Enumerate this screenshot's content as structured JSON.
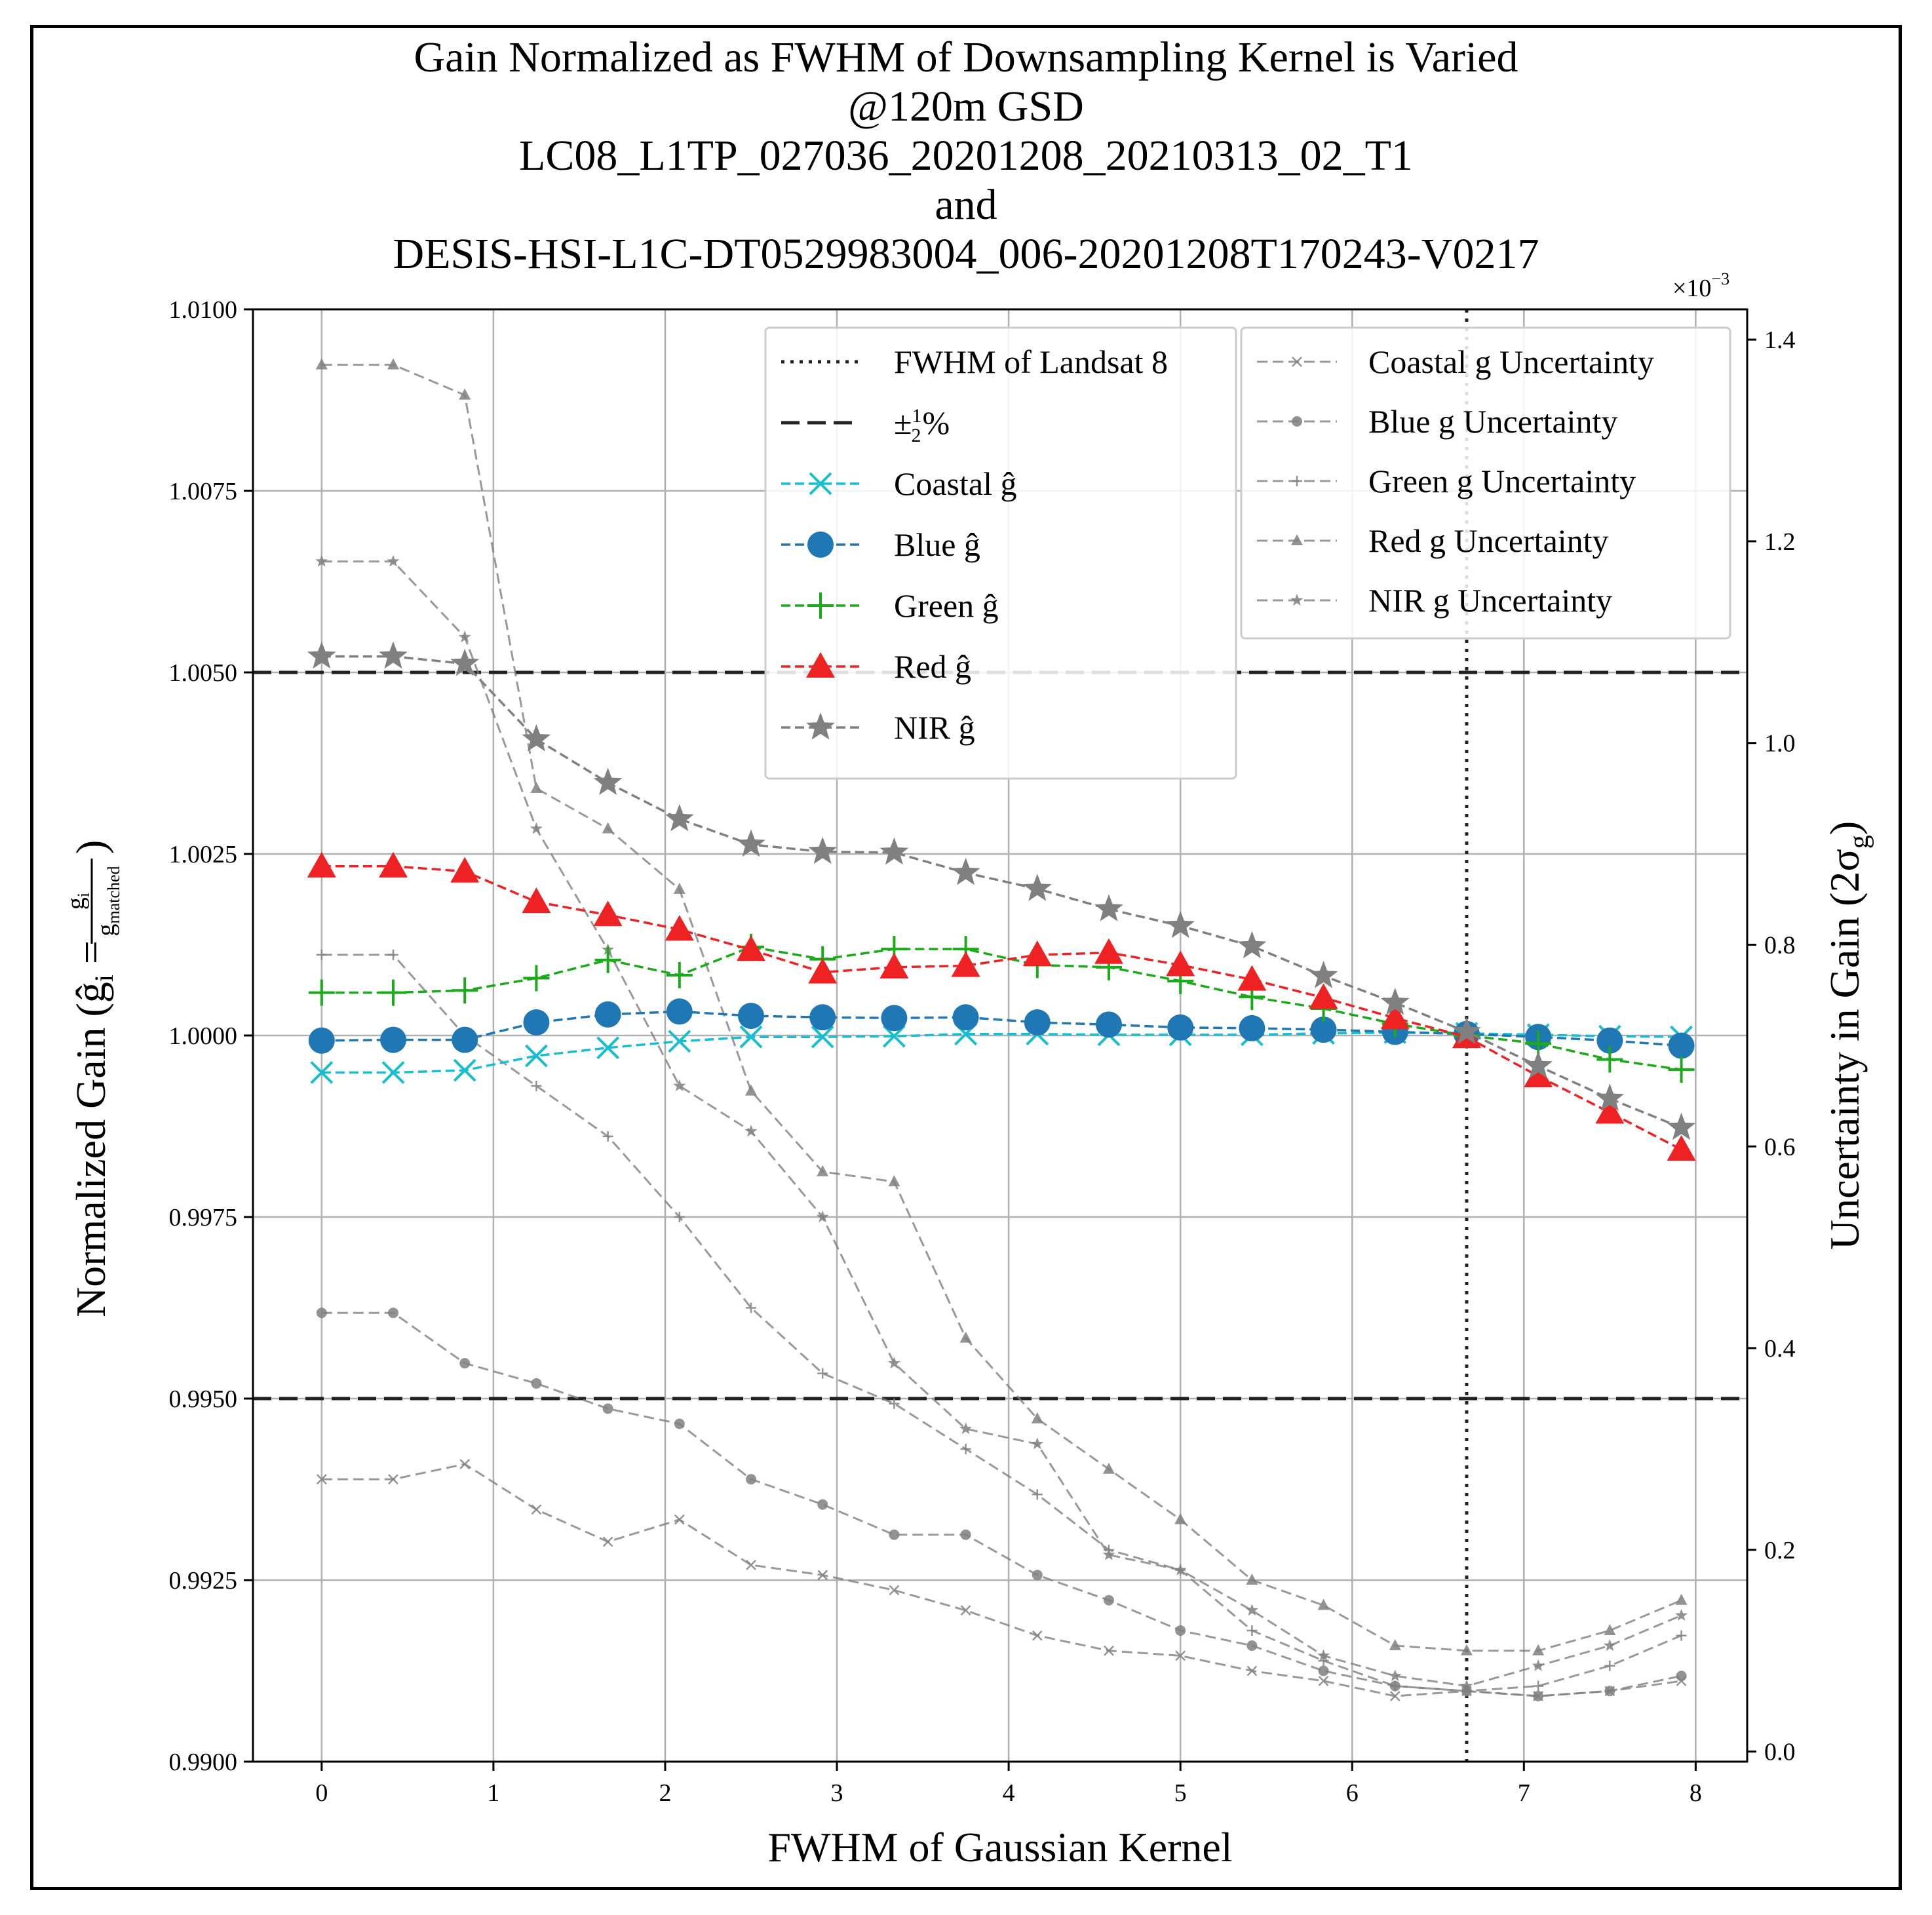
{
  "chart_data": {
    "type": "line",
    "title_lines": [
      "Gain Normalized as FWHM of Downsampling Kernel is Varied",
      "@120m GSD",
      "LC08_L1TP_027036_20201208_20210313_02_T1",
      "and",
      "DESIS-HSI-L1C-DT0529983004_006-20201208T170243-V0217"
    ],
    "xlabel": "FWHM of Gaussian Kernel",
    "ylabel_left": "Normalized Gain (ĝ_i = g_i / g_matched)",
    "ylabel_left_parts": {
      "prefix": "Normalized Gain (",
      "ghat": "ĝ",
      "sub_i": "i",
      "eq": " = ",
      "num": "g",
      "num_sub": "i",
      "den": "g",
      "den_sub": "matched",
      "suffix": " )"
    },
    "ylabel_right": "Uncertainty in Gain (2σg)",
    "ylabel_right_parts": {
      "prefix": "Uncertainty in Gain (2σ",
      "sub": "g",
      "suffix": ")"
    },
    "right_multiplier": "×10",
    "right_multiplier_exp": "−3",
    "xlim": [
      -0.4,
      8.3
    ],
    "ylim_left": [
      0.99,
      1.01
    ],
    "ylim_right": [
      -0.01,
      1.43
    ],
    "x_ticks": [
      "0",
      "1",
      "2",
      "3",
      "4",
      "5",
      "6",
      "7",
      "8"
    ],
    "x_tick_values": [
      0,
      1,
      2,
      3,
      4,
      5,
      6,
      7,
      8
    ],
    "y_left_ticks": [
      "0.9900",
      "0.9925",
      "0.9950",
      "0.9975",
      "1.0000",
      "1.0025",
      "1.0050",
      "1.0075",
      "1.0100"
    ],
    "y_left_tick_values": [
      0.99,
      0.9925,
      0.995,
      0.9975,
      1.0,
      1.0025,
      1.005,
      1.0075,
      1.01
    ],
    "y_right_ticks": [
      "0.0",
      "0.2",
      "0.4",
      "0.6",
      "0.8",
      "1.0",
      "1.2",
      "1.4"
    ],
    "y_right_tick_values": [
      0.0,
      0.2,
      0.4,
      0.6,
      0.8,
      1.0,
      1.2,
      1.4
    ],
    "grid": true,
    "x": [
      0.0,
      0.4167,
      0.8333,
      1.25,
      1.6667,
      2.0833,
      2.5,
      2.9167,
      3.3333,
      3.75,
      4.1667,
      4.5833,
      5.0,
      5.4167,
      5.8333,
      6.25,
      6.6667,
      7.0833,
      7.5,
      7.9167
    ],
    "reference_lines": {
      "fwhm_landsat8_x": 6.6667,
      "half_percent_upper": 1.005,
      "half_percent_lower": 0.995
    },
    "series": [
      {
        "name": "Coastal ĝ",
        "axis": "left",
        "color": "#17becf",
        "marker": "x",
        "values": [
          0.99949,
          0.99949,
          0.99952,
          0.99972,
          0.99983,
          0.99992,
          0.99998,
          0.99998,
          0.99999,
          1.00002,
          1.00002,
          1.00001,
          1.00001,
          1.00001,
          1.00003,
          1.00004,
          1.00003,
          1.00001,
          0.99999,
          0.99998
        ]
      },
      {
        "name": "Blue ĝ",
        "axis": "left",
        "color": "#1f77b4",
        "marker": "circle",
        "values": [
          0.99993,
          0.99994,
          0.99994,
          1.00018,
          1.00029,
          1.00033,
          1.00027,
          1.00025,
          1.00024,
          1.00025,
          1.00018,
          1.00015,
          1.00011,
          1.0001,
          1.00008,
          1.00005,
          1.00002,
          0.99998,
          0.99993,
          0.99986
        ]
      },
      {
        "name": "Green ĝ",
        "axis": "left",
        "color": "#1aaa1a",
        "marker": "plus",
        "values": [
          1.00059,
          1.00059,
          1.00062,
          1.00079,
          1.00104,
          1.00083,
          1.00122,
          1.00105,
          1.00119,
          1.00119,
          1.00097,
          1.00094,
          1.00075,
          1.00053,
          1.00037,
          1.00016,
          1.0,
          0.99989,
          0.99967,
          0.99953
        ]
      },
      {
        "name": "Red ĝ",
        "axis": "left",
        "color": "#ee2222",
        "marker": "triangle",
        "values": [
          1.00233,
          1.00233,
          1.00226,
          1.00184,
          1.00166,
          1.00146,
          1.00118,
          1.00087,
          1.00094,
          1.00096,
          1.00111,
          1.00114,
          1.00097,
          1.00077,
          1.00052,
          1.00024,
          0.99998,
          0.99944,
          0.99894,
          0.99843
        ]
      },
      {
        "name": "NIR ĝ",
        "axis": "left",
        "color": "#808080",
        "marker": "star",
        "values": [
          1.00522,
          1.00522,
          1.00512,
          1.00408,
          1.00348,
          1.00298,
          1.00263,
          1.00253,
          1.00252,
          1.00224,
          1.00202,
          1.00174,
          1.00151,
          1.00123,
          1.00082,
          1.00045,
          1.00005,
          0.99958,
          0.99913,
          0.99873
        ]
      },
      {
        "name": "Coastal g Uncertainty",
        "axis": "right",
        "color": "#808080",
        "marker": "x-small",
        "values": [
          0.27,
          0.27,
          0.285,
          0.24,
          0.208,
          0.23,
          0.185,
          0.175,
          0.16,
          0.14,
          0.115,
          0.1,
          0.095,
          0.08,
          0.07,
          0.055,
          0.06,
          0.055,
          0.06,
          0.07
        ]
      },
      {
        "name": "Blue g Uncertainty",
        "axis": "right",
        "color": "#808080",
        "marker": "circle-small",
        "values": [
          0.435,
          0.435,
          0.385,
          0.365,
          0.34,
          0.325,
          0.27,
          0.245,
          0.215,
          0.215,
          0.175,
          0.15,
          0.12,
          0.105,
          0.08,
          0.065,
          0.06,
          0.055,
          0.06,
          0.075
        ]
      },
      {
        "name": "Green g Uncertainty",
        "axis": "right",
        "color": "#808080",
        "marker": "plus-small",
        "values": [
          0.79,
          0.79,
          0.71,
          0.66,
          0.61,
          0.53,
          0.44,
          0.375,
          0.345,
          0.3,
          0.255,
          0.2,
          0.18,
          0.12,
          0.09,
          0.065,
          0.06,
          0.065,
          0.085,
          0.115
        ]
      },
      {
        "name": "Red g Uncertainty",
        "axis": "right",
        "color": "#808080",
        "marker": "triangle-small",
        "values": [
          1.375,
          1.375,
          1.345,
          0.955,
          0.915,
          0.855,
          0.655,
          0.575,
          0.565,
          0.41,
          0.33,
          0.28,
          0.23,
          0.17,
          0.145,
          0.105,
          0.1,
          0.1,
          0.12,
          0.15
        ]
      },
      {
        "name": "NIR g Uncertainty",
        "axis": "right",
        "color": "#808080",
        "marker": "star-small",
        "values": [
          1.18,
          1.18,
          1.105,
          0.915,
          0.795,
          0.66,
          0.615,
          0.53,
          0.385,
          0.32,
          0.305,
          0.195,
          0.18,
          0.14,
          0.095,
          0.075,
          0.065,
          0.085,
          0.105,
          0.135
        ]
      }
    ],
    "legend_left": [
      {
        "label": "FWHM of Landsat 8",
        "style": "dotted"
      },
      {
        "label": "±",
        "label_frac_num": "1",
        "label_frac_den": "2",
        "label_suffix": "%",
        "style": "dashed"
      },
      {
        "label": "Coastal ĝ",
        "series": 0
      },
      {
        "label": "Blue ĝ",
        "series": 1
      },
      {
        "label": "Green ĝ",
        "series": 2
      },
      {
        "label": "Red ĝ",
        "series": 3
      },
      {
        "label": "NIR ĝ",
        "series": 4
      }
    ],
    "legend_right": [
      {
        "label": "Coastal g Uncertainty",
        "series": 5
      },
      {
        "label": "Blue g Uncertainty",
        "series": 6
      },
      {
        "label": "Green g Uncertainty",
        "series": 7
      },
      {
        "label": "Red g Uncertainty",
        "series": 8
      },
      {
        "label": "NIR g Uncertainty",
        "series": 9
      }
    ],
    "legend_placement": "top-right"
  }
}
